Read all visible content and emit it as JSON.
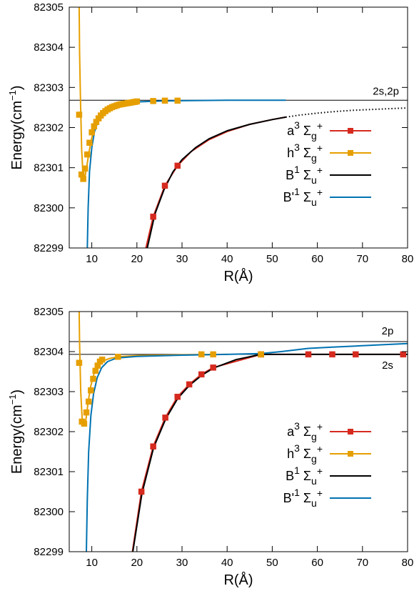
{
  "chart_data": [
    {
      "type": "line",
      "panel": "top",
      "xlabel": "R(Å)",
      "ylabel": "Energy(cm",
      "ylabel_sup": "−1",
      "ylabel_close": ")",
      "xlim": [
        5,
        80
      ],
      "ylim": [
        82299,
        82305
      ],
      "xticks": [
        10,
        20,
        30,
        40,
        50,
        60,
        70,
        80
      ],
      "yticks": [
        82299,
        82300,
        82301,
        82302,
        82303,
        82304,
        82305
      ],
      "grid": false,
      "legend_position": "right",
      "reference_lines": [
        {
          "label": "2s,2p",
          "y": 82302.68,
          "color": "#000000"
        }
      ],
      "series": [
        {
          "name": "a3Σg+",
          "legend": {
            "pre": "a",
            "sup1": "3",
            "mid": " Σ",
            "sub": "g",
            "sup2": "+"
          },
          "color": "#d62a1f",
          "style": "line-points",
          "line_x": [
            22,
            23.6,
            26.2,
            29,
            32,
            36,
            40,
            45,
            50,
            53
          ],
          "line_y": [
            82299.0,
            82299.78,
            82300.55,
            82301.05,
            82301.4,
            82301.7,
            82301.9,
            82302.08,
            82302.2,
            82302.26
          ],
          "points_x": [
            23.6,
            26.2,
            29
          ],
          "points_y": [
            82299.78,
            82300.55,
            82301.05
          ]
        },
        {
          "name": "h3Σg+",
          "legend": {
            "pre": "h",
            "sup1": "3",
            "mid": " Σ",
            "sub": "g",
            "sup2": "+"
          },
          "color": "#e69f00",
          "style": "line-points",
          "line_x": [
            7.2,
            7.3,
            7.5,
            7.75,
            8.05,
            8.4,
            8.85,
            9.4,
            10,
            10.8,
            12,
            13.5,
            15,
            17,
            20
          ],
          "line_y": [
            82305,
            82303.85,
            82302.65,
            82301.45,
            82300.82,
            82300.72,
            82301.0,
            82301.4,
            82301.75,
            82302.05,
            82302.3,
            82302.45,
            82302.53,
            82302.59,
            82302.63
          ],
          "points_x": [
            7.2,
            7.7,
            8.1,
            8.5,
            9.0,
            9.5,
            10.0,
            10.5,
            11.0,
            11.5,
            12.0,
            12.5,
            13.0,
            13.5,
            14.0,
            14.5,
            15.0,
            15.5,
            16.0,
            16.5,
            17.0,
            17.5,
            18.0,
            18.5,
            19.0,
            19.5,
            20.0,
            23.6,
            26.2,
            29.0
          ],
          "points_y": [
            82302.32,
            82300.83,
            82300.72,
            82300.98,
            82301.33,
            82301.62,
            82301.88,
            82302.03,
            82302.14,
            82302.23,
            82302.3,
            82302.36,
            82302.41,
            82302.45,
            82302.48,
            82302.51,
            82302.53,
            82302.55,
            82302.57,
            82302.58,
            82302.59,
            82302.6,
            82302.61,
            82302.62,
            82302.63,
            82302.64,
            82302.65,
            82302.66,
            82302.67,
            82302.67
          ]
        },
        {
          "name": "B1Σu+",
          "legend": {
            "pre": "B",
            "sup1": "1",
            "mid": " Σ",
            "sub": "u",
            "sup2": "+"
          },
          "color": "#000000",
          "style": "line",
          "line_x": [
            22.3,
            24,
            26,
            28,
            30,
            33,
            36,
            40,
            45,
            50,
            53
          ],
          "line_y": [
            82299.0,
            82299.85,
            82300.45,
            82300.9,
            82301.2,
            82301.5,
            82301.72,
            82301.92,
            82302.08,
            82302.2,
            82302.26
          ],
          "dotted_x": [
            53,
            56,
            60,
            64,
            68,
            72,
            76,
            80
          ],
          "dotted_y": [
            82302.26,
            82302.31,
            82302.36,
            82302.4,
            82302.43,
            82302.45,
            82302.47,
            82302.49
          ]
        },
        {
          "name": "B'1Σu+",
          "legend": {
            "pre": "B'",
            "sup1": "1",
            "mid": " Σ",
            "sub": "u",
            "sup2": "+"
          },
          "color": "#0072b2",
          "style": "line",
          "line_x": [
            9.0,
            9.2,
            9.5,
            10,
            10.6,
            11.5,
            12.5,
            14,
            16,
            18,
            20,
            25,
            30,
            40,
            53
          ],
          "line_y": [
            82299.0,
            82300.0,
            82300.9,
            82301.5,
            82301.9,
            82302.2,
            82302.37,
            82302.5,
            82302.58,
            82302.62,
            82302.64,
            82302.66,
            82302.67,
            82302.68,
            82302.68
          ]
        }
      ]
    },
    {
      "type": "line",
      "panel": "bottom",
      "xlabel": "R(Å)",
      "ylabel": "Energy(cm",
      "ylabel_sup": "−1",
      "ylabel_close": ")",
      "xlim": [
        5,
        80
      ],
      "ylim": [
        82299,
        82305
      ],
      "xticks": [
        10,
        20,
        30,
        40,
        50,
        60,
        70,
        80
      ],
      "yticks": [
        82299,
        82300,
        82301,
        82302,
        82303,
        82304,
        82305
      ],
      "grid": false,
      "legend_position": "right",
      "reference_lines": [
        {
          "label": "2p",
          "y": 82304.25,
          "color": "#000000"
        },
        {
          "label": "2s",
          "y": 82303.93,
          "color": "#000000"
        }
      ],
      "series": [
        {
          "name": "a3Σg+",
          "legend": {
            "pre": "a",
            "sup1": "3",
            "mid": " Σ",
            "sub": "g",
            "sup2": "+"
          },
          "color": "#d62a1f",
          "style": "line-points",
          "line_x": [
            19,
            21,
            23.6,
            26.3,
            29,
            31.6,
            34.3,
            36.9,
            47.5,
            58,
            63.3,
            68.5,
            79
          ],
          "line_y": [
            82299.0,
            82300.5,
            82301.63,
            82302.35,
            82302.87,
            82303.18,
            82303.43,
            82303.6,
            82303.93,
            82303.93,
            82303.93,
            82303.93,
            82303.93
          ],
          "points_x": [
            21,
            23.6,
            26.3,
            29,
            31.6,
            34.3,
            36.9,
            47.5,
            58,
            63.3,
            68.5,
            79
          ],
          "points_y": [
            82300.5,
            82301.63,
            82302.35,
            82302.87,
            82303.18,
            82303.43,
            82303.6,
            82303.93,
            82303.93,
            82303.93,
            82303.93,
            82303.93
          ]
        },
        {
          "name": "h3Σg+",
          "legend": {
            "pre": "h",
            "sup1": "3",
            "mid": " Σ",
            "sub": "g",
            "sup2": "+"
          },
          "color": "#e69f00",
          "style": "line-points",
          "line_x": [
            7.2,
            7.3,
            7.55,
            7.85,
            8.25,
            8.7,
            9.2,
            9.8,
            10.5,
            11.5,
            12.5,
            14,
            15.8,
            20,
            30,
            40
          ],
          "line_y": [
            82305,
            82304.2,
            82303.0,
            82302.35,
            82302.2,
            82302.3,
            82302.75,
            82303.15,
            82303.45,
            82303.68,
            82303.77,
            82303.83,
            82303.87,
            82303.9,
            82303.92,
            82303.93
          ],
          "points_x": [
            7.2,
            7.8,
            8.3,
            8.8,
            9.3,
            9.8,
            10.3,
            10.8,
            11.3,
            11.8,
            12.3,
            15.8,
            34.3,
            36.9,
            47.5
          ],
          "points_y": [
            82303.72,
            82302.25,
            82302.2,
            82302.48,
            82302.75,
            82303.03,
            82303.32,
            82303.52,
            82303.65,
            82303.75,
            82303.8,
            82303.87,
            82303.93,
            82303.93,
            82303.93
          ]
        },
        {
          "name": "B1Σu+",
          "legend": {
            "pre": "B",
            "sup1": "1",
            "mid": " Σ",
            "sub": "u",
            "sup2": "+"
          },
          "color": "#000000",
          "style": "line",
          "line_x": [
            19.1,
            21.1,
            23.7,
            26.4,
            29.1,
            31.7,
            34.4,
            37,
            42,
            47.5,
            58,
            70,
            80
          ],
          "line_y": [
            82299.0,
            82300.45,
            82301.6,
            82302.32,
            82302.84,
            82303.16,
            82303.41,
            82303.59,
            82303.8,
            82303.93,
            82303.93,
            82303.93,
            82303.93
          ]
        },
        {
          "name": "B'1Σu+",
          "legend": {
            "pre": "B'",
            "sup1": "1",
            "mid": " Σ",
            "sub": "u",
            "sup2": "+"
          },
          "color": "#0072b2",
          "style": "line",
          "line_x": [
            8.8,
            9.0,
            9.3,
            9.8,
            10.4,
            11.2,
            12.2,
            13.5,
            15.5,
            20,
            30,
            40,
            47.5,
            52,
            58,
            63.3,
            68.5,
            74,
            80
          ],
          "line_y": [
            82299.0,
            82300.3,
            82301.5,
            82302.4,
            82302.95,
            82303.35,
            82303.6,
            82303.75,
            82303.84,
            82303.88,
            82303.91,
            82303.93,
            82303.95,
            82304.0,
            82304.08,
            82304.11,
            82304.14,
            82304.17,
            82304.2
          ]
        }
      ]
    }
  ]
}
